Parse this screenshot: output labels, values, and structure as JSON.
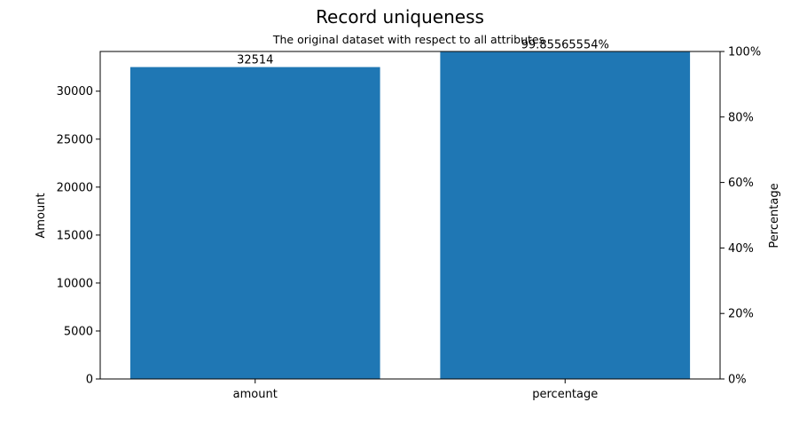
{
  "chart_data": {
    "type": "bar",
    "title": "Record uniqueness",
    "subtitle": "The original dataset with respect to all attributes",
    "categories": [
      "amount",
      "percentage"
    ],
    "series": [
      {
        "axis": "left",
        "category": "amount",
        "value": 32514,
        "label": "32514"
      },
      {
        "axis": "right",
        "category": "percentage",
        "value": 99.85565554,
        "label": "99.85565554%"
      }
    ],
    "ylabel_left": "Amount",
    "ylabel_right": "Percentage",
    "ylim_left": [
      0,
      34140
    ],
    "ylim_right": [
      0,
      100
    ],
    "yticks_left": [
      0,
      5000,
      10000,
      15000,
      20000,
      25000,
      30000
    ],
    "yticks_right": [
      "0%",
      "20%",
      "40%",
      "60%",
      "80%",
      "100%"
    ],
    "yticks_right_values": [
      0,
      20,
      40,
      60,
      80,
      100
    ],
    "bar_color": "#1f77b4",
    "grid": false
  }
}
